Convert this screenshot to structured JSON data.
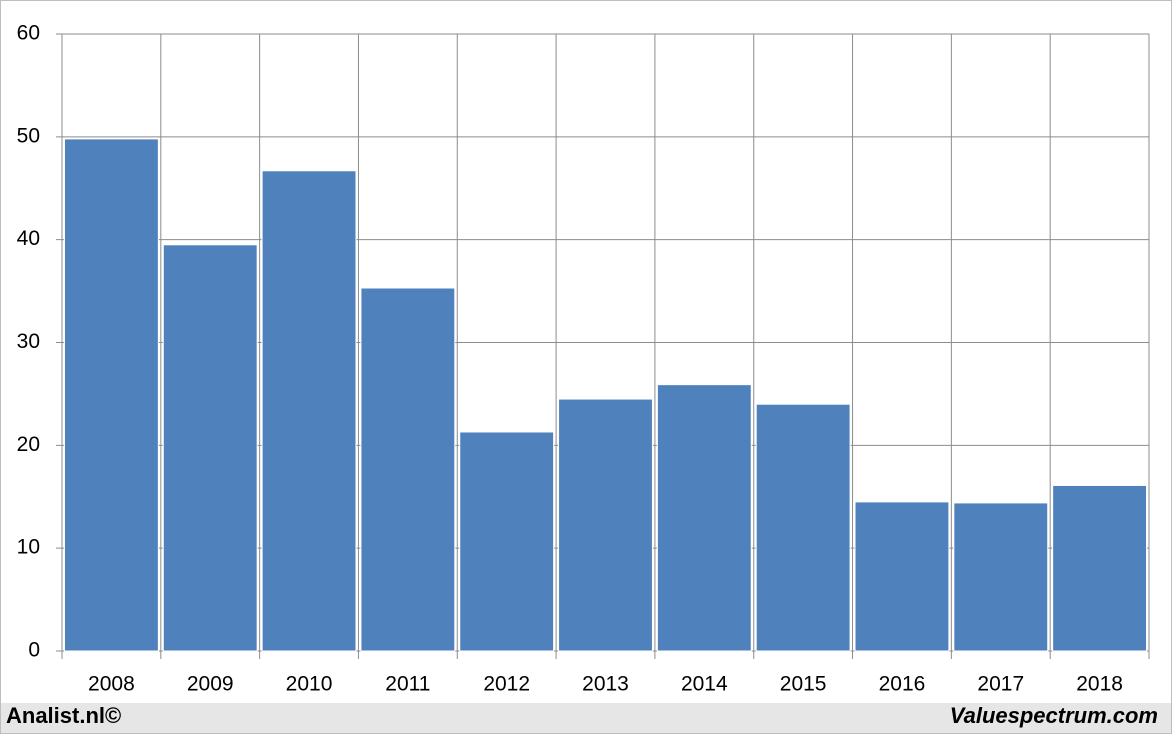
{
  "chart_data": {
    "type": "bar",
    "categories": [
      "2008",
      "2009",
      "2010",
      "2011",
      "2012",
      "2013",
      "2014",
      "2015",
      "2016",
      "2017",
      "2018"
    ],
    "values": [
      49.8,
      39.5,
      46.7,
      35.3,
      21.3,
      24.5,
      25.9,
      24.0,
      14.5,
      14.4,
      16.1
    ],
    "color": "#4f81bd",
    "ylim": [
      0,
      60
    ],
    "yticks": [
      0,
      10,
      20,
      30,
      40,
      50,
      60
    ],
    "grid": true,
    "annotations": [
      "Analist.nl©",
      "Valuespectrum.com"
    ]
  }
}
